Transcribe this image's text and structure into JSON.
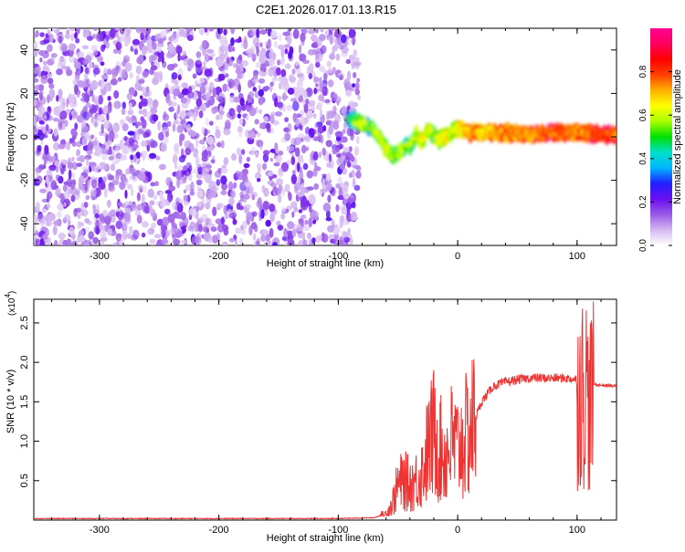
{
  "page_title": "C2E1.2026.017.01.13.R15",
  "chart_data": [
    {
      "type": "heatmap",
      "title": "C2E1.2026.017.01.13.R15",
      "xlabel": "Height of straight line (km)",
      "ylabel": "Frequency (Hz)",
      "xlim": [
        -355,
        133
      ],
      "ylim": [
        -50,
        50
      ],
      "x_ticks": [
        -300,
        -200,
        -100,
        0,
        100
      ],
      "y_ticks": [
        -40,
        -20,
        0,
        20,
        40
      ],
      "colorbar": {
        "label": "Normalized spectral amplitude",
        "range": [
          0.0,
          1.0
        ],
        "ticks": [
          0.0,
          0.2,
          0.4,
          0.6,
          0.8
        ],
        "colors": [
          "#ffffff",
          "#d4b8f0",
          "#9a5ae6",
          "#6a0ff0",
          "#2020ff",
          "#00b4ff",
          "#00e0c8",
          "#00e000",
          "#a8ff00",
          "#ffff00",
          "#ffb000",
          "#ff4000",
          "#ff0000",
          "#ff0060",
          "#ff0090"
        ]
      },
      "noise_region": {
        "x_range": [
          -355,
          -83
        ],
        "y_range": [
          -50,
          50
        ]
      },
      "signal_ridge": {
        "x": [
          -92,
          -85,
          -80,
          -75,
          -70,
          -65,
          -60,
          -55,
          -50,
          -45,
          -40,
          -35,
          -30,
          -25,
          -20,
          -15,
          -10,
          -5,
          0,
          10,
          20,
          40,
          60,
          80,
          100,
          120,
          133
        ],
        "frequency": [
          8,
          7,
          6,
          5,
          3,
          -1,
          -5,
          -9,
          -8,
          -5,
          -4,
          1,
          -2,
          3,
          1,
          -1,
          0,
          2,
          4,
          2,
          2,
          2,
          1,
          2,
          2,
          1,
          1
        ],
        "amplitude": [
          0.3,
          0.5,
          0.6,
          0.4,
          0.5,
          0.5,
          0.6,
          0.5,
          0.5,
          0.5,
          0.5,
          0.5,
          0.6,
          0.6,
          0.5,
          0.6,
          0.6,
          0.6,
          0.6,
          0.8,
          0.7,
          0.8,
          0.8,
          0.9,
          0.8,
          0.9,
          0.9
        ]
      }
    },
    {
      "type": "line",
      "xlabel": "Height of straight line (km)",
      "ylabel": "SNR (10 * v/v)",
      "y_multiplier": "(x10",
      "y_multiplier_exp": "4",
      "y_multiplier_close": ")",
      "xlim": [
        -355,
        133
      ],
      "ylim": [
        0,
        2.8
      ],
      "x_ticks": [
        -300,
        -200,
        -100,
        0,
        100
      ],
      "y_ticks": [
        0.5,
        1.0,
        1.5,
        2.0,
        2.5
      ],
      "line_color": "#ee3333",
      "series": [
        {
          "x": [
            -355,
            -300,
            -200,
            -100,
            -70,
            -60,
            -55,
            -50,
            -45,
            -40,
            -35,
            -30,
            -25,
            -20,
            -15,
            -10,
            -5,
            0,
            10,
            20,
            30,
            40,
            50,
            60,
            70,
            80,
            90,
            100,
            105,
            108,
            110,
            112,
            115,
            120,
            133
          ],
          "values": [
            0.02,
            0.02,
            0.02,
            0.02,
            0.03,
            0.08,
            0.2,
            0.45,
            0.5,
            0.45,
            0.5,
            0.6,
            0.9,
            1.1,
            0.9,
            0.8,
            1.0,
            0.9,
            1.1,
            1.5,
            1.7,
            1.75,
            1.78,
            1.8,
            1.8,
            1.8,
            1.8,
            1.78,
            1.8,
            1.9,
            1.5,
            1.75,
            1.72,
            1.71,
            1.7
          ]
        }
      ]
    }
  ]
}
